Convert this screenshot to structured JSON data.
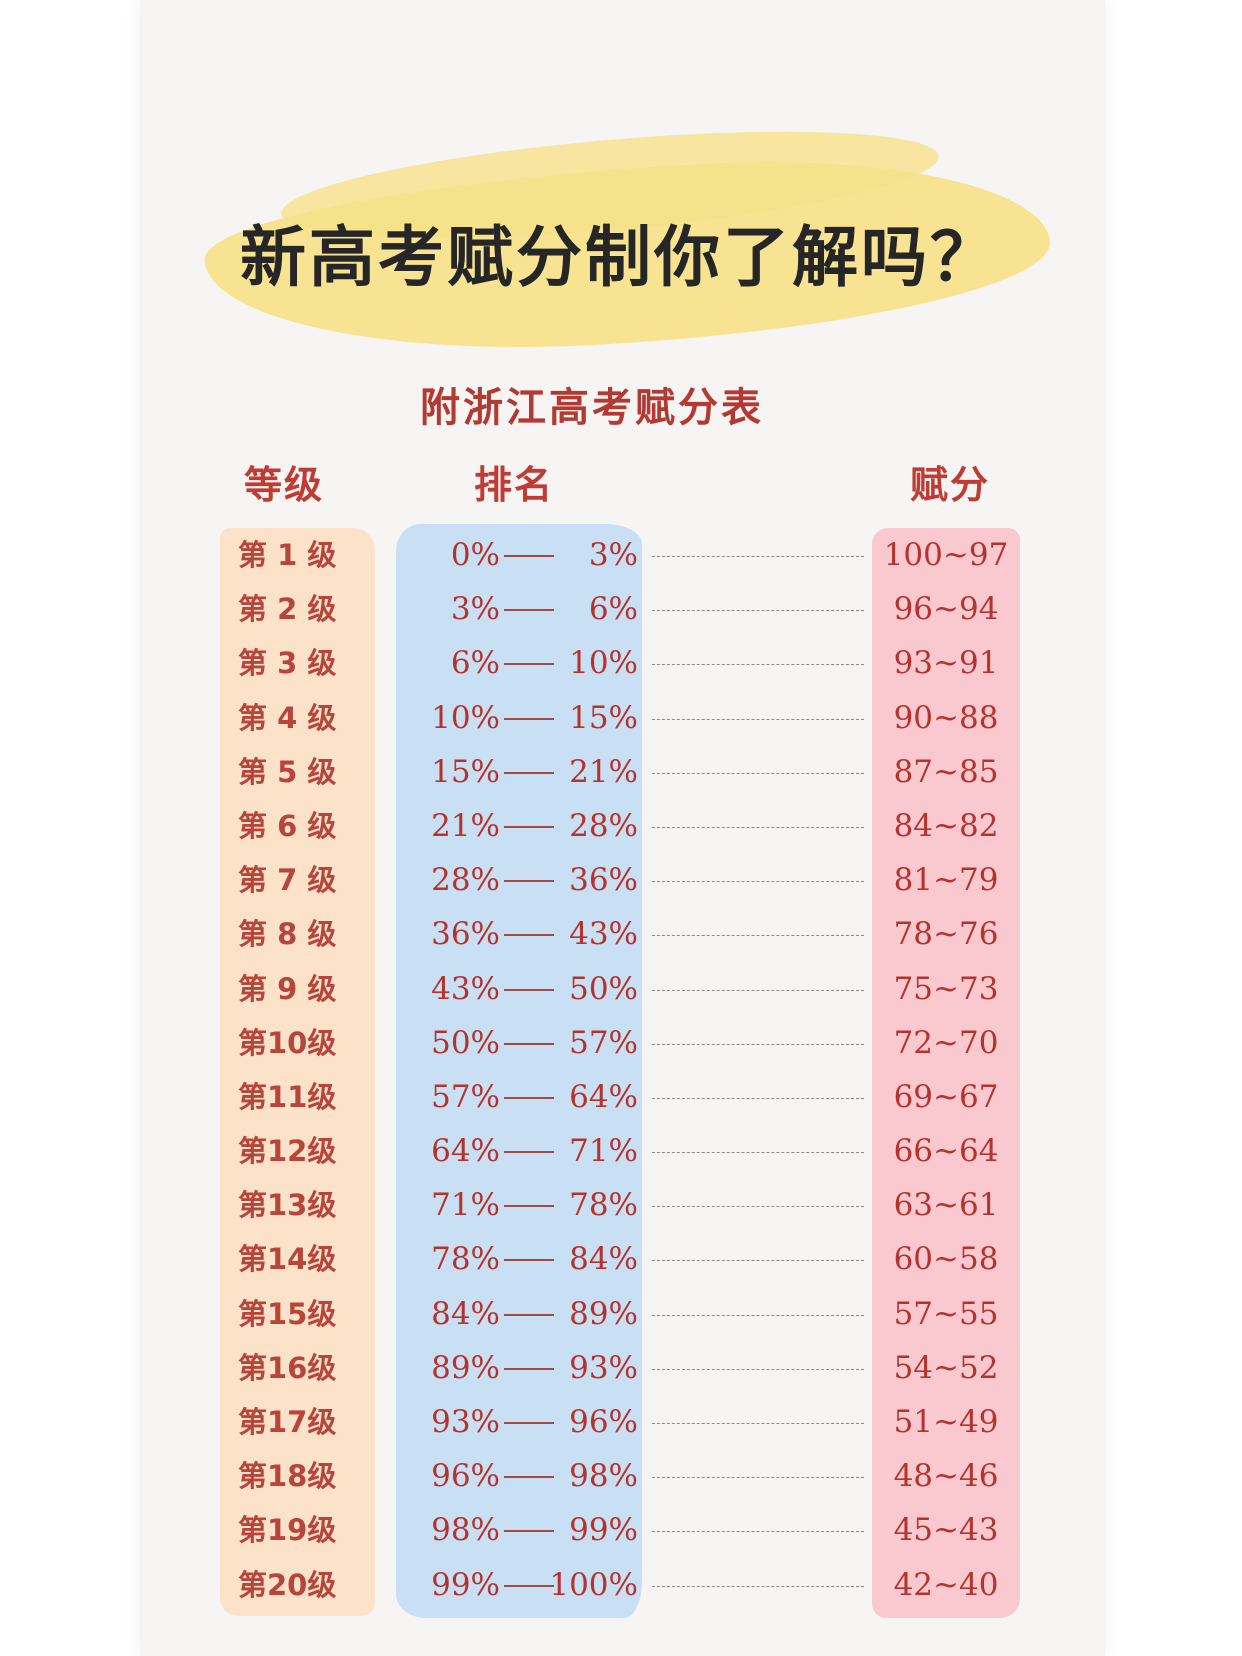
{
  "title": "新高考赋分制你了解吗？",
  "subtitle": "附浙江高考赋分表",
  "headers": {
    "grade": "等级",
    "rank": "排名",
    "score": "赋分"
  },
  "rows": [
    {
      "grade": "第 1 级",
      "from": "0%",
      "to": "3%",
      "score": "100~97"
    },
    {
      "grade": "第 2 级",
      "from": "3%",
      "to": "6%",
      "score": "96~94"
    },
    {
      "grade": "第 3 级",
      "from": "6%",
      "to": "10%",
      "score": "93~91"
    },
    {
      "grade": "第 4 级",
      "from": "10%",
      "to": "15%",
      "score": "90~88"
    },
    {
      "grade": "第 5 级",
      "from": "15%",
      "to": "21%",
      "score": "87~85"
    },
    {
      "grade": "第 6 级",
      "from": "21%",
      "to": "28%",
      "score": "84~82"
    },
    {
      "grade": "第 7 级",
      "from": "28%",
      "to": "36%",
      "score": "81~79"
    },
    {
      "grade": "第 8 级",
      "from": "36%",
      "to": "43%",
      "score": "78~76"
    },
    {
      "grade": "第 9 级",
      "from": "43%",
      "to": "50%",
      "score": "75~73"
    },
    {
      "grade": "第10级",
      "from": "50%",
      "to": "57%",
      "score": "72~70"
    },
    {
      "grade": "第11级",
      "from": "57%",
      "to": "64%",
      "score": "69~67"
    },
    {
      "grade": "第12级",
      "from": "64%",
      "to": "71%",
      "score": "66~64"
    },
    {
      "grade": "第13级",
      "from": "71%",
      "to": "78%",
      "score": "63~61"
    },
    {
      "grade": "第14级",
      "from": "78%",
      "to": "84%",
      "score": "60~58"
    },
    {
      "grade": "第15级",
      "from": "84%",
      "to": "89%",
      "score": "57~55"
    },
    {
      "grade": "第16级",
      "from": "89%",
      "to": "93%",
      "score": "54~52"
    },
    {
      "grade": "第17级",
      "from": "93%",
      "to": "96%",
      "score": "51~49"
    },
    {
      "grade": "第18级",
      "from": "96%",
      "to": "98%",
      "score": "48~46"
    },
    {
      "grade": "第19级",
      "from": "98%",
      "to": "99%",
      "score": "45~43"
    },
    {
      "grade": "第20级",
      "from": "99%",
      "to": "100%",
      "score": "42~40"
    }
  ],
  "colors": {
    "highlight": "#f7e28b",
    "grade_band": "#fbe2c9",
    "rank_band": "#c9e0f4",
    "score_band": "#f9c9cf",
    "accent_text": "#b5332d"
  }
}
